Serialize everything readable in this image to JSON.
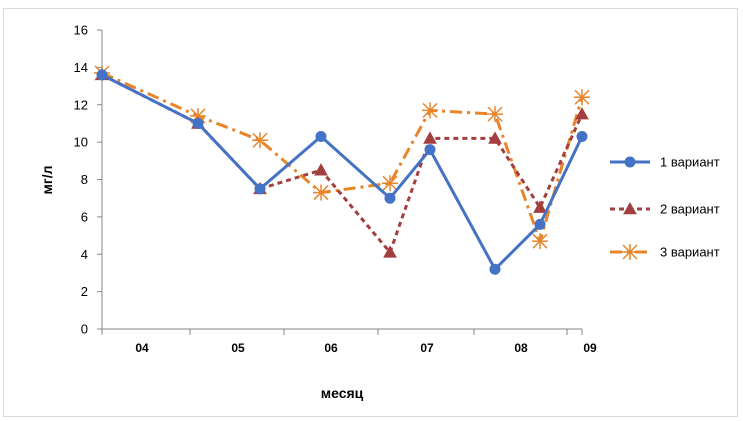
{
  "chart_data": {
    "type": "line",
    "title": "",
    "xlabel": "месяц",
    "ylabel": "мг/л",
    "ylim": [
      0,
      16
    ],
    "yticks": [
      0,
      2,
      4,
      6,
      8,
      10,
      12,
      14,
      16
    ],
    "x_domain": [
      0,
      5.6
    ],
    "x_tick_labels": [
      {
        "label": "04",
        "x": 0.43
      },
      {
        "label": "05",
        "x": 1.45
      },
      {
        "label": "06",
        "x": 2.43
      },
      {
        "label": "07",
        "x": 3.43
      },
      {
        "label": "08",
        "x": 4.43
      },
      {
        "label": "09",
        "x": 5.17
      }
    ],
    "x_boundaries": [
      0,
      1.0,
      2.0,
      3.0,
      4.0,
      5.0,
      5.6
    ],
    "grid": false,
    "legend_position": "right",
    "series": [
      {
        "name": "1 вариант",
        "color": "#4472c4",
        "style": "solid",
        "marker": "circle",
        "points": [
          [
            0,
            13.6
          ],
          [
            1.03,
            11.0
          ],
          [
            2.0,
            7.5
          ],
          [
            3.0,
            10.3
          ],
          [
            4.0,
            7.0
          ],
          [
            4.55,
            9.6
          ],
          [
            5.54,
            3.2
          ],
          [
            6.0,
            5.6
          ],
          [
            6.4,
            10.3
          ]
        ]
      },
      {
        "name": "2 вариант",
        "color": "#a33f3f",
        "style": "dashed",
        "marker": "triangle",
        "points": [
          [
            0,
            13.6
          ],
          [
            1.03,
            11.0
          ],
          [
            2.0,
            7.5
          ],
          [
            3.0,
            8.5
          ],
          [
            4.0,
            4.1
          ],
          [
            4.55,
            10.2
          ],
          [
            5.54,
            10.2
          ],
          [
            6.0,
            6.5
          ],
          [
            6.4,
            11.5
          ]
        ]
      },
      {
        "name": "3 вариант",
        "color": "#e8852b",
        "style": "dashdot",
        "marker": "asterisk",
        "points": [
          [
            0,
            13.7
          ],
          [
            1.03,
            11.4
          ],
          [
            2.0,
            10.1
          ],
          [
            3.0,
            7.3
          ],
          [
            4.0,
            7.8
          ],
          [
            4.55,
            11.7
          ],
          [
            5.54,
            11.5
          ],
          [
            6.0,
            4.7
          ],
          [
            6.4,
            12.4
          ]
        ]
      }
    ]
  }
}
